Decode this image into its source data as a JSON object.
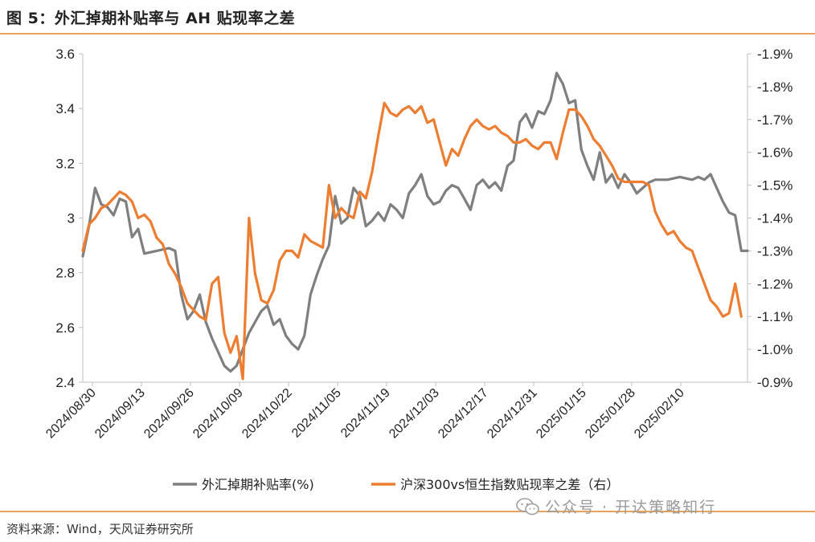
{
  "header": {
    "title": "图 5：外汇掉期补贴率与 AH 贴现率之差"
  },
  "footer": {
    "source": "资料来源：Wind，天风证券研究所"
  },
  "watermark": {
    "text": "公众号 · 开达策略知行"
  },
  "chart_data": {
    "type": "line",
    "title": "",
    "grid": false,
    "legend": "bottom",
    "x_ticks": [
      "2024/08/30",
      "2024/09/13",
      "2024/09/26",
      "2024/10/09",
      "2024/10/22",
      "2024/11/05",
      "2024/11/19",
      "2024/12/03",
      "2024/12/17",
      "2024/12/31",
      "2025/01/15",
      "2025/01/28",
      "2025/02/10"
    ],
    "y_left": {
      "min": 2.4,
      "max": 3.6,
      "ticks": [
        "2.4",
        "2.6",
        "2.8",
        "3",
        "3.2",
        "3.4",
        "3.6"
      ]
    },
    "y_right": {
      "min": -1.9,
      "max": -0.9,
      "ticks": [
        "-1.9%",
        "-1.8%",
        "-1.7%",
        "-1.6%",
        "-1.5%",
        "-1.4%",
        "-1.3%",
        "-1.2%",
        "-1.1%",
        "-1.0%",
        "-0.9%"
      ],
      "inverted": true
    },
    "series": [
      {
        "name": "外汇掉期补贴率(%)",
        "axis": "left",
        "color": "#7f7f7f",
        "points": [
          [
            0,
            2.86
          ],
          [
            1,
            2.97
          ],
          [
            2,
            3.11
          ],
          [
            3,
            3.05
          ],
          [
            4,
            3.04
          ],
          [
            5,
            3.01
          ],
          [
            6,
            3.07
          ],
          [
            7,
            3.06
          ],
          [
            8,
            2.93
          ],
          [
            9,
            2.96
          ],
          [
            10,
            2.87
          ],
          [
            12,
            2.88
          ],
          [
            14,
            2.89
          ],
          [
            15,
            2.88
          ],
          [
            16,
            2.72
          ],
          [
            17,
            2.63
          ],
          [
            18,
            2.66
          ],
          [
            19,
            2.72
          ],
          [
            20,
            2.62
          ],
          [
            21,
            2.56
          ],
          [
            22,
            2.51
          ],
          [
            23,
            2.46
          ],
          [
            24,
            2.44
          ],
          [
            25,
            2.46
          ],
          [
            26,
            2.52
          ],
          [
            27,
            2.58
          ],
          [
            28,
            2.62
          ],
          [
            29,
            2.66
          ],
          [
            30,
            2.68
          ],
          [
            31,
            2.61
          ],
          [
            32,
            2.63
          ],
          [
            33,
            2.57
          ],
          [
            34,
            2.54
          ],
          [
            35,
            2.52
          ],
          [
            36,
            2.57
          ],
          [
            37,
            2.72
          ],
          [
            38,
            2.79
          ],
          [
            39,
            2.85
          ],
          [
            40,
            2.9
          ],
          [
            41,
            3.08
          ],
          [
            42,
            2.98
          ],
          [
            43,
            3.0
          ],
          [
            44,
            3.11
          ],
          [
            45,
            3.08
          ],
          [
            46,
            2.97
          ],
          [
            47,
            2.99
          ],
          [
            48,
            3.02
          ],
          [
            49,
            2.99
          ],
          [
            50,
            3.05
          ],
          [
            51,
            3.03
          ],
          [
            52,
            3.0
          ],
          [
            53,
            3.09
          ],
          [
            54,
            3.12
          ],
          [
            55,
            3.16
          ],
          [
            56,
            3.08
          ],
          [
            57,
            3.05
          ],
          [
            58,
            3.06
          ],
          [
            59,
            3.1
          ],
          [
            60,
            3.12
          ],
          [
            61,
            3.11
          ],
          [
            62,
            3.07
          ],
          [
            63,
            3.03
          ],
          [
            64,
            3.12
          ],
          [
            65,
            3.14
          ],
          [
            66,
            3.11
          ],
          [
            67,
            3.13
          ],
          [
            68,
            3.1
          ],
          [
            69,
            3.19
          ],
          [
            70,
            3.21
          ],
          [
            71,
            3.35
          ],
          [
            72,
            3.38
          ],
          [
            73,
            3.33
          ],
          [
            74,
            3.39
          ],
          [
            75,
            3.38
          ],
          [
            76,
            3.43
          ],
          [
            77,
            3.53
          ],
          [
            78,
            3.49
          ],
          [
            79,
            3.42
          ],
          [
            80,
            3.43
          ],
          [
            81,
            3.25
          ],
          [
            82,
            3.19
          ],
          [
            83,
            3.14
          ],
          [
            84,
            3.24
          ],
          [
            85,
            3.13
          ],
          [
            86,
            3.16
          ],
          [
            87,
            3.11
          ],
          [
            88,
            3.16
          ],
          [
            89,
            3.13
          ],
          [
            90,
            3.09
          ],
          [
            91,
            3.11
          ],
          [
            92,
            3.13
          ],
          [
            93,
            3.14
          ],
          [
            95,
            3.14
          ],
          [
            97,
            3.15
          ],
          [
            99,
            3.14
          ],
          [
            100,
            3.15
          ],
          [
            101,
            3.14
          ],
          [
            102,
            3.16
          ],
          [
            103,
            3.11
          ],
          [
            104,
            3.06
          ],
          [
            105,
            3.02
          ],
          [
            106,
            3.01
          ],
          [
            107,
            2.88
          ],
          [
            108,
            2.88
          ]
        ]
      },
      {
        "name": "沪深300vs恒生指数贴现率之差（右）",
        "axis": "right",
        "color": "#ed7d31",
        "points": [
          [
            0,
            -1.3
          ],
          [
            1,
            -1.38
          ],
          [
            2,
            -1.4
          ],
          [
            3,
            -1.43
          ],
          [
            4,
            -1.44
          ],
          [
            5,
            -1.46
          ],
          [
            6,
            -1.48
          ],
          [
            7,
            -1.47
          ],
          [
            8,
            -1.45
          ],
          [
            9,
            -1.4
          ],
          [
            10,
            -1.41
          ],
          [
            11,
            -1.39
          ],
          [
            12,
            -1.34
          ],
          [
            13,
            -1.32
          ],
          [
            14,
            -1.26
          ],
          [
            15,
            -1.23
          ],
          [
            16,
            -1.19
          ],
          [
            17,
            -1.14
          ],
          [
            18,
            -1.12
          ],
          [
            19,
            -1.1
          ],
          [
            20,
            -1.09
          ],
          [
            21,
            -1.2
          ],
          [
            22,
            -1.22
          ],
          [
            23,
            -1.05
          ],
          [
            24,
            -0.99
          ],
          [
            25,
            -1.04
          ],
          [
            26,
            -0.91
          ],
          [
            27,
            -1.4
          ],
          [
            28,
            -1.23
          ],
          [
            29,
            -1.15
          ],
          [
            30,
            -1.14
          ],
          [
            31,
            -1.18
          ],
          [
            32,
            -1.27
          ],
          [
            33,
            -1.3
          ],
          [
            34,
            -1.3
          ],
          [
            35,
            -1.28
          ],
          [
            36,
            -1.35
          ],
          [
            37,
            -1.33
          ],
          [
            38,
            -1.32
          ],
          [
            39,
            -1.31
          ],
          [
            40,
            -1.5
          ],
          [
            41,
            -1.4
          ],
          [
            42,
            -1.43
          ],
          [
            43,
            -1.41
          ],
          [
            44,
            -1.4
          ],
          [
            45,
            -1.48
          ],
          [
            46,
            -1.46
          ],
          [
            47,
            -1.54
          ],
          [
            48,
            -1.65
          ],
          [
            49,
            -1.75
          ],
          [
            50,
            -1.72
          ],
          [
            51,
            -1.71
          ],
          [
            52,
            -1.73
          ],
          [
            53,
            -1.74
          ],
          [
            54,
            -1.72
          ],
          [
            55,
            -1.74
          ],
          [
            56,
            -1.69
          ],
          [
            57,
            -1.7
          ],
          [
            58,
            -1.63
          ],
          [
            59,
            -1.56
          ],
          [
            60,
            -1.61
          ],
          [
            61,
            -1.59
          ],
          [
            62,
            -1.64
          ],
          [
            63,
            -1.68
          ],
          [
            64,
            -1.7
          ],
          [
            65,
            -1.68
          ],
          [
            66,
            -1.67
          ],
          [
            67,
            -1.68
          ],
          [
            68,
            -1.66
          ],
          [
            69,
            -1.65
          ],
          [
            70,
            -1.63
          ],
          [
            71,
            -1.63
          ],
          [
            72,
            -1.64
          ],
          [
            73,
            -1.62
          ],
          [
            74,
            -1.61
          ],
          [
            75,
            -1.63
          ],
          [
            76,
            -1.63
          ],
          [
            77,
            -1.58
          ],
          [
            78,
            -1.66
          ],
          [
            79,
            -1.73
          ],
          [
            80,
            -1.73
          ],
          [
            81,
            -1.71
          ],
          [
            82,
            -1.68
          ],
          [
            83,
            -1.64
          ],
          [
            84,
            -1.62
          ],
          [
            85,
            -1.59
          ],
          [
            86,
            -1.56
          ],
          [
            87,
            -1.52
          ],
          [
            88,
            -1.51
          ],
          [
            89,
            -1.51
          ],
          [
            90,
            -1.51
          ],
          [
            91,
            -1.51
          ],
          [
            92,
            -1.5
          ],
          [
            93,
            -1.42
          ],
          [
            94,
            -1.38
          ],
          [
            95,
            -1.35
          ],
          [
            96,
            -1.36
          ],
          [
            97,
            -1.33
          ],
          [
            98,
            -1.31
          ],
          [
            99,
            -1.3
          ],
          [
            100,
            -1.25
          ],
          [
            101,
            -1.2
          ],
          [
            102,
            -1.15
          ],
          [
            103,
            -1.13
          ],
          [
            104,
            -1.1
          ],
          [
            105,
            -1.11
          ],
          [
            106,
            -1.2
          ],
          [
            107,
            -1.1
          ]
        ]
      }
    ]
  }
}
